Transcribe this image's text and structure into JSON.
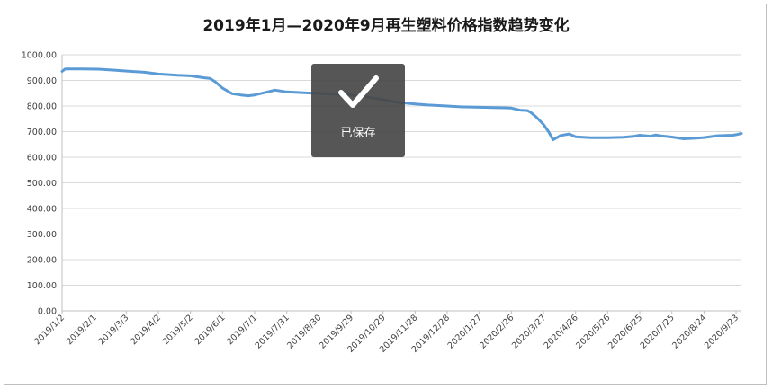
{
  "chart_data": {
    "type": "line",
    "title": "2019年1月—2020年9月再生塑料价格指数趋势变化",
    "xlabel": "",
    "ylabel": "",
    "ylim": [
      0,
      1000
    ],
    "yticks": [
      "0.00",
      "100.00",
      "200.00",
      "300.00",
      "400.00",
      "500.00",
      "600.00",
      "700.00",
      "800.00",
      "900.00",
      "1000.00"
    ],
    "xticks": [
      "2019/1/2",
      "2019/2/1",
      "2019/3/3",
      "2019/4/2",
      "2019/5/2",
      "2019/6/1",
      "2019/7/1",
      "2019/7/31",
      "2019/8/30",
      "2019/9/29",
      "2019/10/29",
      "2019/11/28",
      "2019/12/28",
      "2020/1/27",
      "2020/2/26",
      "2020/3/27",
      "2020/4/26",
      "2020/5/26",
      "2020/6/25",
      "2020/7/25",
      "2020/8/24",
      "2020/9/23"
    ],
    "grid": true,
    "legend": "none",
    "series": [
      {
        "color": "#5b9bd5",
        "x": [
          "2019/1/2",
          "2019/1/5",
          "2019/1/20",
          "2019/2/5",
          "2019/2/20",
          "2019/3/5",
          "2019/3/20",
          "2019/4/2",
          "2019/4/20",
          "2019/5/2",
          "2019/5/15",
          "2019/5/20",
          "2019/5/25",
          "2019/6/1",
          "2019/6/10",
          "2019/6/18",
          "2019/6/25",
          "2019/7/1",
          "2019/7/10",
          "2019/7/20",
          "2019/7/31",
          "2019/8/10",
          "2019/8/20",
          "2019/8/30",
          "2019/9/10",
          "2019/9/20",
          "2019/9/29",
          "2019/10/10",
          "2019/10/29",
          "2019/11/10",
          "2019/11/28",
          "2019/12/10",
          "2019/12/28",
          "2020/1/10",
          "2020/1/27",
          "2020/2/10",
          "2020/2/20",
          "2020/2/26",
          "2020/3/5",
          "2020/3/12",
          "2020/3/15",
          "2020/3/20",
          "2020/3/27",
          "2020/4/1",
          "2020/4/5",
          "2020/4/12",
          "2020/4/20",
          "2020/4/26",
          "2020/5/10",
          "2020/5/26",
          "2020/6/10",
          "2020/6/20",
          "2020/6/25",
          "2020/7/5",
          "2020/7/10",
          "2020/7/15",
          "2020/7/25",
          "2020/8/5",
          "2020/8/15",
          "2020/8/24",
          "2020/9/5",
          "2020/9/20",
          "2020/9/23",
          "2020/9/28"
        ],
        "values": [
          935,
          945,
          945,
          944,
          940,
          936,
          932,
          925,
          920,
          918,
          910,
          908,
          895,
          870,
          848,
          843,
          840,
          843,
          852,
          862,
          855,
          853,
          851,
          849,
          847,
          845,
          843,
          838,
          825,
          815,
          808,
          804,
          800,
          797,
          795,
          794,
          793,
          792,
          784,
          782,
          775,
          758,
          728,
          698,
          668,
          685,
          691,
          680,
          676,
          676,
          678,
          682,
          686,
          682,
          687,
          683,
          679,
          672,
          674,
          677,
          684,
          686,
          688,
          693
        ]
      }
    ]
  },
  "overlay": {
    "icon": "checkmark-icon",
    "text": "已保存"
  }
}
